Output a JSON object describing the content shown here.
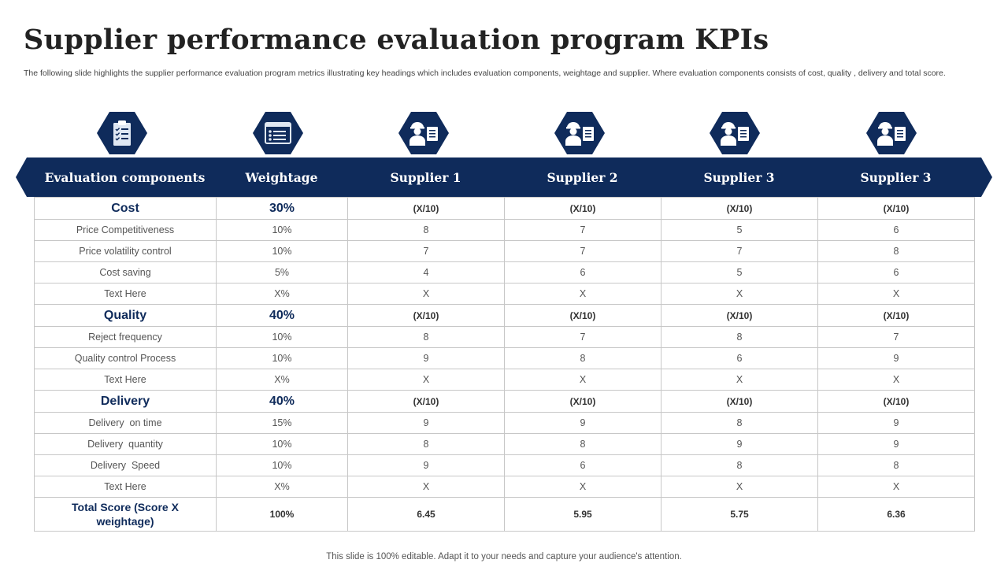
{
  "title": "Supplier performance evaluation program KPIs",
  "subtitle": "The following slide highlights the supplier performance evaluation program metrics illustrating key headings which includes evaluation components, weightage and supplier. Where evaluation components consists of cost, quality , delivery and total score.",
  "icons": [
    "clipboard-checklist-icon",
    "form-list-icon",
    "worker-clipboard-icon",
    "worker-clipboard-icon",
    "worker-clipboard-icon",
    "worker-clipboard-icon"
  ],
  "headers": [
    "Evaluation components",
    "Weightage",
    "Supplier 1",
    "Supplier 2",
    "Supplier 3",
    "Supplier 3"
  ],
  "rows": [
    {
      "type": "section",
      "cells": [
        "Cost",
        "30%",
        "(X/10)",
        "(X/10)",
        "(X/10)",
        "(X/10)"
      ]
    },
    {
      "type": "item",
      "cells": [
        "Price Competitiveness",
        "10%",
        "8",
        "7",
        "5",
        "6"
      ]
    },
    {
      "type": "item",
      "cells": [
        "Price volatility control",
        "10%",
        "7",
        "7",
        "7",
        "8"
      ]
    },
    {
      "type": "item",
      "cells": [
        "Cost saving",
        "5%",
        "4",
        "6",
        "5",
        "6"
      ]
    },
    {
      "type": "item",
      "cells": [
        "Text Here",
        "X%",
        "X",
        "X",
        "X",
        "X"
      ]
    },
    {
      "type": "section",
      "cells": [
        "Quality",
        "40%",
        "(X/10)",
        "(X/10)",
        "(X/10)",
        "(X/10)"
      ]
    },
    {
      "type": "item",
      "cells": [
        "Reject frequency",
        "10%",
        "8",
        "7",
        "8",
        "7"
      ]
    },
    {
      "type": "item",
      "cells": [
        "Quality control Process",
        "10%",
        "9",
        "8",
        "6",
        "9"
      ]
    },
    {
      "type": "item",
      "cells": [
        "Text Here",
        "X%",
        "X",
        "X",
        "X",
        "X"
      ]
    },
    {
      "type": "section",
      "cells": [
        "Delivery",
        "40%",
        "(X/10)",
        "(X/10)",
        "(X/10)",
        "(X/10)"
      ]
    },
    {
      "type": "item",
      "cells": [
        "Delivery  on time",
        "15%",
        "9",
        "9",
        "8",
        "9"
      ]
    },
    {
      "type": "item",
      "cells": [
        "Delivery  quantity",
        "10%",
        "8",
        "8",
        "9",
        "9"
      ]
    },
    {
      "type": "item",
      "cells": [
        "Delivery  Speed",
        "10%",
        "9",
        "6",
        "8",
        "8"
      ]
    },
    {
      "type": "item",
      "cells": [
        "Text Here",
        "X%",
        "X",
        "X",
        "X",
        "X"
      ]
    },
    {
      "type": "total",
      "cells": [
        "Total Score (Score X weightage)",
        "100%",
        "6.45",
        "5.95",
        "5.75",
        "6.36"
      ]
    }
  ],
  "footer": "This slide is 100% editable. Adapt it to your needs and capture your audience's attention.",
  "colors": {
    "accent": "#0f2b5b",
    "border": "#c7c7c7"
  }
}
